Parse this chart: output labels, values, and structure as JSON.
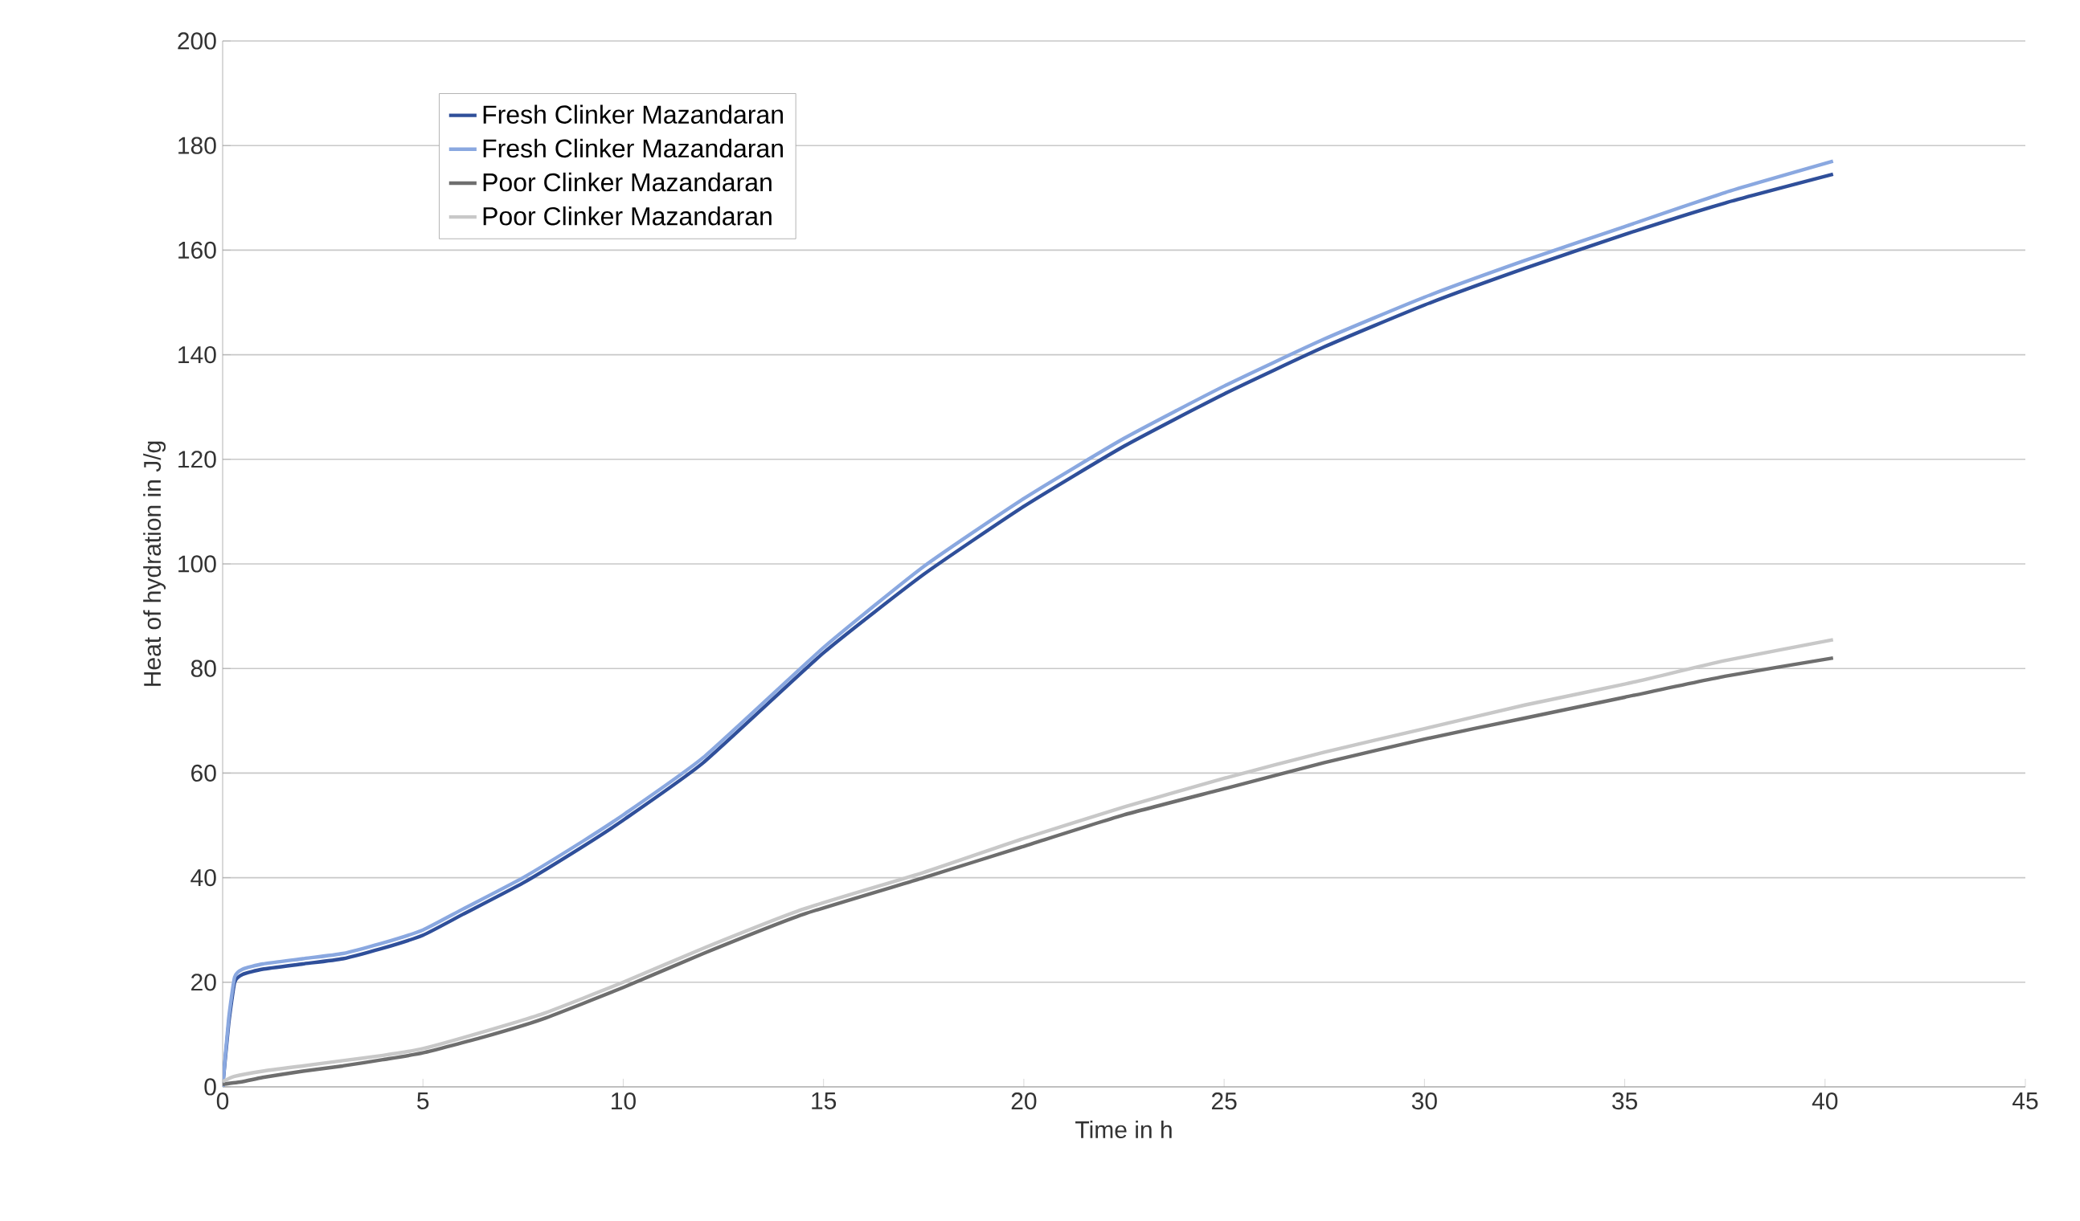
{
  "chart_data": {
    "type": "line",
    "xlabel": "Time in h",
    "ylabel": "Heat of hydration in J/g",
    "xlim": [
      0,
      45
    ],
    "xticks": [
      0,
      5,
      10,
      15,
      20,
      25,
      30,
      35,
      40,
      45
    ],
    "ylim": [
      0,
      200
    ],
    "yticks": [
      0,
      20,
      40,
      60,
      80,
      100,
      120,
      140,
      160,
      180,
      200
    ],
    "grid": "y",
    "legend": "top left",
    "marker": "none",
    "line_style": "solid",
    "series": [
      {
        "name": "Fresh Clinker Mazandaran",
        "color": "#2f4f9a",
        "x": [
          0,
          0.15,
          0.3,
          0.5,
          1,
          2,
          3,
          4,
          5,
          6,
          7.5,
          9,
          10,
          12,
          15,
          17.5,
          20,
          22.5,
          25,
          27.5,
          30,
          32.5,
          35,
          37.5,
          40.2
        ],
        "values": [
          0,
          12,
          20,
          21.5,
          22.5,
          23.5,
          24.5,
          26.5,
          29,
          33,
          39,
          46,
          51,
          62,
          83,
          98,
          111,
          122.5,
          132.5,
          141.5,
          149.5,
          156.5,
          163,
          169,
          174.5
        ]
      },
      {
        "name": "Fresh Clinker Mazandaran",
        "color": "#8aa8e0",
        "x": [
          0,
          0.15,
          0.3,
          0.5,
          1,
          2,
          3,
          4,
          5,
          6,
          7.5,
          9,
          10,
          12,
          15,
          17.5,
          20,
          22.5,
          25,
          27.5,
          30,
          32.5,
          35,
          37.5,
          40.2
        ],
        "values": [
          0,
          13,
          21,
          22.5,
          23.5,
          24.5,
          25.5,
          27.5,
          30,
          34,
          40,
          47,
          52,
          63,
          84,
          99.5,
          112.5,
          124,
          134,
          143,
          151,
          158,
          164.5,
          171,
          177
        ]
      },
      {
        "name": "Poor Clinker Mazandaran",
        "color": "#6e6e6e",
        "x": [
          0,
          0.5,
          1,
          2,
          3,
          4,
          5,
          6.5,
          8,
          10,
          12,
          14.5,
          17.5,
          20,
          22.5,
          25,
          27.5,
          30,
          32.5,
          35,
          37.5,
          40.2
        ],
        "values": [
          0.5,
          1,
          1.8,
          3,
          4,
          5.2,
          6.5,
          9.5,
          13,
          19,
          25.5,
          33,
          40,
          46,
          52,
          57,
          62,
          66.5,
          70.5,
          74.5,
          78.5,
          82
        ]
      },
      {
        "name": "Poor Clinker Mazandaran",
        "color": "#c8c8c8",
        "x": [
          0,
          0.3,
          1,
          2,
          3,
          4,
          5,
          6.5,
          8,
          10,
          12,
          14.5,
          17.5,
          20,
          22.5,
          25,
          27.5,
          30,
          32.5,
          35,
          37.5,
          40.2
        ],
        "values": [
          1,
          2,
          3,
          4,
          5,
          6,
          7.3,
          10.5,
          14,
          20,
          26.5,
          34,
          41,
          47.5,
          53.5,
          59,
          64,
          68.5,
          73,
          77,
          81.5,
          85.5
        ]
      }
    ]
  }
}
